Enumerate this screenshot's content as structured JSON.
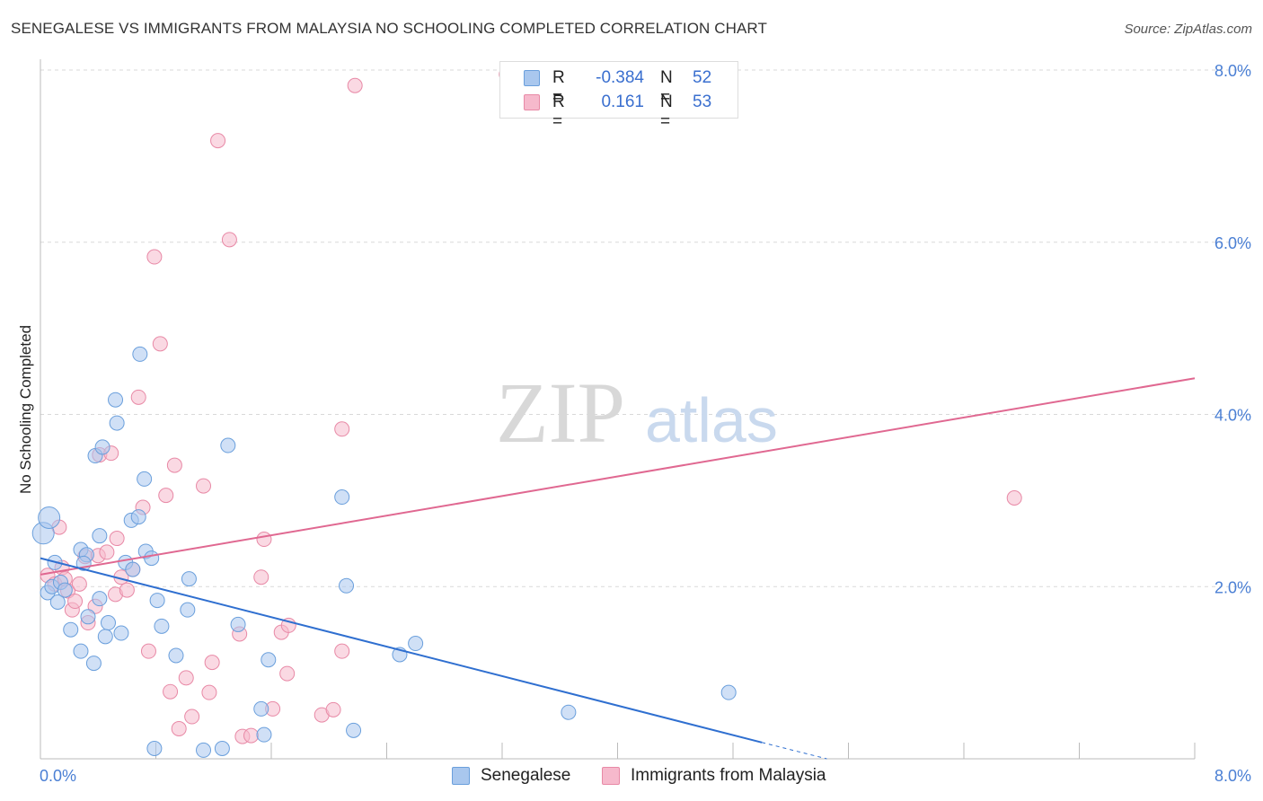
{
  "title": "SENEGALESE VS IMMIGRANTS FROM MALAYSIA NO SCHOOLING COMPLETED CORRELATION CHART",
  "source": "Source: ZipAtlas.com",
  "watermark": {
    "zip": "ZIP",
    "atlas": "atlas"
  },
  "colors": {
    "blue_fill": "#a9c7ee",
    "blue_stroke": "#6a9fdc",
    "blue_line": "#2f6fd0",
    "pink_fill": "#f6b9cc",
    "pink_stroke": "#e889a6",
    "pink_line": "#e06891",
    "tick_text": "#4a7fd4",
    "grid": "#d9d9d9"
  },
  "legend": {
    "rows": [
      {
        "r_label": "R =",
        "r_value": "-0.384",
        "n_label": "N =",
        "n_value": "52",
        "series": "blue"
      },
      {
        "r_label": "R =",
        "r_value": "0.161",
        "n_label": "N =",
        "n_value": "53",
        "series": "pink"
      }
    ]
  },
  "bottom_legend": [
    {
      "label": "Senegalese",
      "series": "blue"
    },
    {
      "label": "Immigrants from Malaysia",
      "series": "pink"
    }
  ],
  "chart_data": {
    "type": "scatter",
    "title": "SENEGALESE VS IMMIGRANTS FROM MALAYSIA NO SCHOOLING COMPLETED CORRELATION CHART",
    "xlabel": "",
    "ylabel": "No Schooling Completed",
    "xlim": [
      0,
      8
    ],
    "ylim": [
      0,
      8
    ],
    "x_tick_labels": [
      "0.0%",
      "8.0%"
    ],
    "y_tick_labels": [
      "2.0%",
      "4.0%",
      "6.0%",
      "8.0%"
    ],
    "y_ticks": [
      2,
      4,
      6,
      8
    ],
    "grid": true,
    "legend_position": "top-center",
    "series": [
      {
        "name": "Senegalese",
        "color": "#a9c7ee",
        "trend": {
          "x": [
            0.0,
            5.0
          ],
          "y": [
            2.33,
            0.19
          ]
        },
        "trend_dashed_extension": {
          "x": [
            5.0,
            5.45
          ],
          "y": [
            0.19,
            0.0
          ]
        },
        "points": [
          [
            0.02,
            2.62
          ],
          [
            0.06,
            2.8
          ],
          [
            0.05,
            1.93
          ],
          [
            0.08,
            2.0
          ],
          [
            0.14,
            2.05
          ],
          [
            0.12,
            1.82
          ],
          [
            0.17,
            1.96
          ],
          [
            0.21,
            1.5
          ],
          [
            0.28,
            2.43
          ],
          [
            0.28,
            1.25
          ],
          [
            0.32,
            2.37
          ],
          [
            0.3,
            2.27
          ],
          [
            0.33,
            1.65
          ],
          [
            0.37,
            1.11
          ],
          [
            0.38,
            3.52
          ],
          [
            0.41,
            1.86
          ],
          [
            0.41,
            2.59
          ],
          [
            0.43,
            3.62
          ],
          [
            0.45,
            1.42
          ],
          [
            0.47,
            1.58
          ],
          [
            0.52,
            4.17
          ],
          [
            0.53,
            3.9
          ],
          [
            0.56,
            1.46
          ],
          [
            0.59,
            2.28
          ],
          [
            0.64,
            2.2
          ],
          [
            0.63,
            2.77
          ],
          [
            0.68,
            2.81
          ],
          [
            0.69,
            4.7
          ],
          [
            0.72,
            3.25
          ],
          [
            0.73,
            2.41
          ],
          [
            0.77,
            2.33
          ],
          [
            0.79,
            0.12
          ],
          [
            0.81,
            1.84
          ],
          [
            0.84,
            1.54
          ],
          [
            0.94,
            1.2
          ],
          [
            1.03,
            2.09
          ],
          [
            1.02,
            1.73
          ],
          [
            1.13,
            0.1
          ],
          [
            1.26,
            0.12
          ],
          [
            1.3,
            3.64
          ],
          [
            1.37,
            1.56
          ],
          [
            1.53,
            0.58
          ],
          [
            1.55,
            0.28
          ],
          [
            1.58,
            1.15
          ],
          [
            2.09,
            3.04
          ],
          [
            2.12,
            2.01
          ],
          [
            2.17,
            0.33
          ],
          [
            2.49,
            1.21
          ],
          [
            2.6,
            1.34
          ],
          [
            3.66,
            0.54
          ],
          [
            4.77,
            0.77
          ],
          [
            0.1,
            2.28
          ]
        ]
      },
      {
        "name": "Immigrants from Malaysia",
        "color": "#f6b9cc",
        "trend": {
          "x": [
            0.0,
            8.0
          ],
          "y": [
            2.14,
            4.42
          ]
        },
        "points": [
          [
            0.05,
            2.13
          ],
          [
            0.1,
            2.03
          ],
          [
            0.13,
            2.69
          ],
          [
            0.15,
            2.22
          ],
          [
            0.17,
            2.09
          ],
          [
            0.19,
            1.95
          ],
          [
            0.22,
            1.73
          ],
          [
            0.24,
            1.83
          ],
          [
            0.27,
            2.03
          ],
          [
            0.31,
            2.35
          ],
          [
            0.33,
            1.58
          ],
          [
            0.38,
            1.77
          ],
          [
            0.4,
            2.36
          ],
          [
            0.41,
            3.53
          ],
          [
            0.46,
            2.4
          ],
          [
            0.49,
            3.55
          ],
          [
            0.52,
            1.91
          ],
          [
            0.53,
            2.56
          ],
          [
            0.56,
            2.11
          ],
          [
            0.6,
            1.96
          ],
          [
            0.64,
            2.2
          ],
          [
            0.68,
            4.2
          ],
          [
            0.71,
            2.92
          ],
          [
            0.75,
            1.25
          ],
          [
            0.79,
            5.83
          ],
          [
            0.83,
            4.82
          ],
          [
            0.87,
            3.06
          ],
          [
            0.9,
            0.78
          ],
          [
            0.93,
            3.41
          ],
          [
            0.96,
            0.35
          ],
          [
            1.01,
            0.94
          ],
          [
            1.05,
            0.49
          ],
          [
            1.13,
            3.17
          ],
          [
            1.17,
            0.77
          ],
          [
            1.19,
            1.12
          ],
          [
            1.23,
            7.18
          ],
          [
            1.31,
            6.03
          ],
          [
            1.4,
            0.26
          ],
          [
            1.38,
            1.45
          ],
          [
            1.53,
            2.11
          ],
          [
            1.55,
            2.55
          ],
          [
            1.61,
            0.58
          ],
          [
            1.67,
            1.47
          ],
          [
            1.71,
            0.99
          ],
          [
            1.72,
            1.55
          ],
          [
            1.95,
            0.51
          ],
          [
            2.03,
            0.57
          ],
          [
            2.09,
            3.83
          ],
          [
            2.09,
            1.25
          ],
          [
            2.18,
            7.82
          ],
          [
            3.23,
            7.95
          ],
          [
            6.75,
            3.03
          ],
          [
            1.46,
            0.27
          ]
        ]
      }
    ]
  }
}
